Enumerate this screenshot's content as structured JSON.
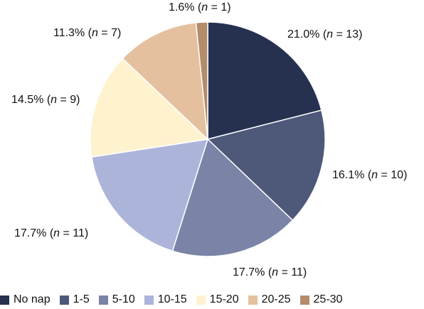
{
  "chart_data": {
    "type": "pie",
    "title": "",
    "start_angle_deg": 0,
    "direction": "clockwise",
    "legend_position": "bottom",
    "slices": [
      {
        "name": "No nap",
        "percent": 21.0,
        "n": 13,
        "color": "#263150",
        "label_prefix": "21.0% (",
        "label_var": "n",
        "label_suffix": " = 13)"
      },
      {
        "name": "1-5",
        "percent": 16.1,
        "n": 10,
        "color": "#4e5879",
        "label_prefix": "16.1% (",
        "label_var": "n",
        "label_suffix": " = 10)"
      },
      {
        "name": "5-10",
        "percent": 17.7,
        "n": 11,
        "color": "#7b83a6",
        "label_prefix": "17.7% (",
        "label_var": "n",
        "label_suffix": " = 11)"
      },
      {
        "name": "10-15",
        "percent": 17.7,
        "n": 11,
        "color": "#adb4da",
        "label_prefix": "17.7% (",
        "label_var": "n",
        "label_suffix": " = 11)"
      },
      {
        "name": "15-20",
        "percent": 14.5,
        "n": 9,
        "color": "#fef2cf",
        "label_prefix": "14.5% (",
        "label_var": "n",
        "label_suffix": " = 9)"
      },
      {
        "name": "20-25",
        "percent": 11.3,
        "n": 7,
        "color": "#e4c09f",
        "label_prefix": "11.3% (",
        "label_var": "n",
        "label_suffix": " = 7)"
      },
      {
        "name": "25-30",
        "percent": 1.6,
        "n": 1,
        "color": "#b38c6c",
        "label_prefix": "1.6% (",
        "label_var": "n",
        "label_suffix": " = 1)"
      }
    ]
  }
}
